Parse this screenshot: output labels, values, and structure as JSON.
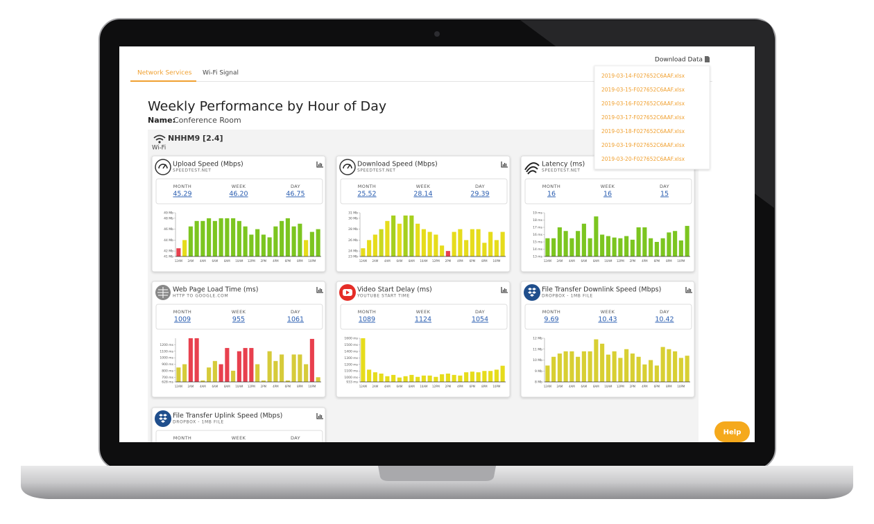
{
  "tabs": [
    "Network Services",
    "Wi-Fi Signal"
  ],
  "download": {
    "label": "Download Data",
    "files": [
      "2019-03-14-F027652C6AAF.xlsx",
      "2019-03-15-F027652C6AAF.xlsx",
      "2019-03-16-F027652C6AAF.xlsx",
      "2019-03-17-F027652C6AAF.xlsx",
      "2019-03-18-F027652C6AAF.xlsx",
      "2019-03-19-F027652C6AAF.xlsx",
      "2019-03-20-F027652C6AAF.xlsx"
    ]
  },
  "header": {
    "title": "Weekly Performance by Hour of Day",
    "name_label": "Name:",
    "name": "Conference Room"
  },
  "network": {
    "ssid": "NHHM9 [2.4]",
    "kind": "Wi-Fi"
  },
  "stat_labels": [
    "MONTH",
    "WEEK",
    "DAY"
  ],
  "hours": [
    "12AM",
    "2AM",
    "4AM",
    "6AM",
    "8AM",
    "10AM",
    "12PM",
    "2PM",
    "4PM",
    "6PM",
    "8PM",
    "10PM"
  ],
  "help": "Help",
  "cards": [
    {
      "title": "Upload Speed (Mbps)",
      "subtitle": "SPEEDTEST.NET",
      "stats": [
        "45.29",
        "46.20",
        "46.75"
      ],
      "chart": {
        "type": "bar",
        "ylim": [
          41,
          49
        ],
        "yticks": [
          {
            "value": 41,
            "label": "41 Mb"
          },
          {
            "value": 42,
            "label": "42 Mb"
          },
          {
            "value": 44,
            "label": "44 Mb"
          },
          {
            "value": 46,
            "label": "46 Mb"
          },
          {
            "value": 48,
            "label": "48 Mb"
          },
          {
            "value": 49,
            "label": "49 Mb"
          }
        ],
        "values": [
          42.5,
          44,
          46.5,
          47.5,
          47.5,
          48,
          47.5,
          48,
          48,
          48,
          47.5,
          46.5,
          45,
          46,
          45,
          44.5,
          46.5,
          47.5,
          48,
          46.5,
          47,
          44,
          45.5,
          46
        ],
        "color": [
          "#e8404e",
          "#e6dc1c",
          "#7cc520",
          "#7cc520",
          "#7cc520",
          "#7cc520",
          "#7cc520",
          "#7cc520",
          "#7cc520",
          "#7cc520",
          "#7cc520",
          "#7cc520",
          "#7cc520",
          "#7cc520",
          "#7cc520",
          "#7cc520",
          "#7cc520",
          "#7cc520",
          "#7cc520",
          "#7cc520",
          "#7cc520",
          "#e6dc1c",
          "#7cc520",
          "#7cc520"
        ]
      }
    },
    {
      "title": "Download Speed (Mbps)",
      "subtitle": "SPEEDTEST.NET",
      "stats": [
        "25.52",
        "28.14",
        "29.39"
      ],
      "chart": {
        "type": "bar",
        "ylim": [
          23,
          31
        ],
        "yticks": [
          {
            "value": 23,
            "label": "23 Mb"
          },
          {
            "value": 24,
            "label": "24 Mb"
          },
          {
            "value": 26,
            "label": "26 Mb"
          },
          {
            "value": 28,
            "label": "28 Mb"
          },
          {
            "value": 30,
            "label": "30 Mb"
          },
          {
            "value": 31,
            "label": "31 Mb"
          }
        ],
        "values": [
          24.5,
          26,
          27,
          28,
          29.5,
          30.5,
          29,
          30.5,
          30.5,
          29,
          28,
          27.5,
          27,
          25,
          24,
          27.5,
          28,
          26,
          28,
          28,
          25.5,
          27.5,
          26,
          27.5
        ],
        "color": [
          "#e6dc1c",
          "#e6dc1c",
          "#e6dc1c",
          "#c8d820",
          "#e6dc1c",
          "#a6cf1e",
          "#e6dc1c",
          "#a6cf1e",
          "#a6cf1e",
          "#e6dc1c",
          "#e6dc1c",
          "#e6dc1c",
          "#e6dc1c",
          "#e6dc1c",
          "#e8404e",
          "#e6dc1c",
          "#e6dc1c",
          "#e6dc1c",
          "#e6dc1c",
          "#e6dc1c",
          "#e6dc1c",
          "#e6dc1c",
          "#e6dc1c",
          "#e6dc1c"
        ]
      }
    },
    {
      "title": "Latency (ms)",
      "subtitle": "SPEEDTEST.NET",
      "stats": [
        "16",
        "16",
        "15"
      ],
      "chart": {
        "type": "bar",
        "ylim": [
          13,
          19
        ],
        "yticks": [
          {
            "value": 13,
            "label": "13 ms"
          },
          {
            "value": 14,
            "label": "14 ms"
          },
          {
            "value": 15,
            "label": "15 ms"
          },
          {
            "value": 16,
            "label": "16 ms"
          },
          {
            "value": 17,
            "label": "17 ms"
          },
          {
            "value": 18,
            "label": "18 ms"
          },
          {
            "value": 19,
            "label": "19 ms"
          }
        ],
        "values": [
          15.5,
          15.5,
          17,
          16.5,
          15.5,
          16.5,
          17.5,
          15.5,
          18.5,
          16,
          15.8,
          15.6,
          15.5,
          15.8,
          15.3,
          17,
          17,
          15.5,
          15,
          15.5,
          16.3,
          16.5,
          15.2,
          17.2
        ],
        "color": "#7cc520"
      }
    },
    {
      "title": "Web Page Load Time (ms)",
      "subtitle": "HTTP TO GOOGLE.COM",
      "stats": [
        "1009",
        "955",
        "1061"
      ],
      "chart": {
        "type": "bar",
        "ylim": [
          628,
          1300
        ],
        "yticks": [
          {
            "value": 628,
            "label": "628 ms"
          },
          {
            "value": 700,
            "label": "700 ms"
          },
          {
            "value": 800,
            "label": "800 ms"
          },
          {
            "value": 900,
            "label": "900 ms"
          },
          {
            "value": 1000,
            "label": "1000 ms"
          },
          {
            "value": 1100,
            "label": "1100 ms"
          },
          {
            "value": 1200,
            "label": "1200 ms"
          }
        ],
        "values": [
          850,
          900,
          1300,
          1300,
          650,
          850,
          950,
          900,
          1150,
          800,
          1100,
          1150,
          1150,
          900,
          650,
          1100,
          950,
          1050,
          650,
          1050,
          1050,
          900,
          1290,
          700
        ],
        "color": [
          "#d6cb3a",
          "#d6cb3a",
          "#e8404e",
          "#e8404e",
          "#d6cb3a",
          "#d6cb3a",
          "#d6cb3a",
          "#e8404e",
          "#e8404e",
          "#d6cb3a",
          "#e8404e",
          "#e8404e",
          "#e8404e",
          "#d6cb3a",
          "#d6cb3a",
          "#d6cb3a",
          "#d6cb3a",
          "#d6cb3a",
          "#d6cb3a",
          "#d6cb3a",
          "#d6cb3a",
          "#d6cb3a",
          "#e8404e",
          "#d6cb3a"
        ]
      }
    },
    {
      "title": "Video Start Delay (ms)",
      "subtitle": "YOUTUBE START TIME",
      "stats": [
        "1089",
        "1124",
        "1054"
      ],
      "chart": {
        "type": "bar",
        "ylim": [
          933,
          1600
        ],
        "yticks": [
          {
            "value": 933,
            "label": "933 ms"
          },
          {
            "value": 1000,
            "label": "1000 ms"
          },
          {
            "value": 1100,
            "label": "1100 ms"
          },
          {
            "value": 1200,
            "label": "1200 ms"
          },
          {
            "value": 1300,
            "label": "1300 ms"
          },
          {
            "value": 1400,
            "label": "1400 ms"
          },
          {
            "value": 1500,
            "label": "1500 ms"
          },
          {
            "value": 1600,
            "label": "1600 ms"
          }
        ],
        "values": [
          1600,
          1120,
          1080,
          1060,
          1020,
          1040,
          1000,
          1020,
          1040,
          1010,
          1030,
          1030,
          1010,
          1050,
          1060,
          1040,
          1030,
          1080,
          1090,
          1080,
          1100,
          1100,
          1120,
          1180
        ],
        "color": "#e6dc1c"
      }
    },
    {
      "title": "File Transfer Downlink Speed (Mbps)",
      "subtitle": "DROPBOX - 1MB FILE",
      "stats": [
        "9.69",
        "10.43",
        "10.42"
      ],
      "chart": {
        "type": "bar",
        "ylim": [
          8,
          12
        ],
        "yticks": [
          {
            "value": 8,
            "label": "8 Mb"
          },
          {
            "value": 9,
            "label": "9 Mb"
          },
          {
            "value": 10,
            "label": "10 Mb"
          },
          {
            "value": 11,
            "label": "11 Mb"
          },
          {
            "value": 12,
            "label": "12 Mb"
          }
        ],
        "values": [
          9.5,
          10.3,
          10.6,
          10.8,
          10.8,
          10.3,
          10.8,
          10.8,
          11.9,
          11.5,
          10.5,
          10.8,
          10.2,
          11,
          10.6,
          10.3,
          9.6,
          10,
          9.5,
          11.2,
          11,
          10.8,
          10.2,
          10.4
        ],
        "color": "#d8cf33"
      }
    },
    {
      "title": "File Transfer Uplink Speed (Mbps)",
      "subtitle": "DROPBOX - 1MB FILE",
      "stats": []
    }
  ]
}
